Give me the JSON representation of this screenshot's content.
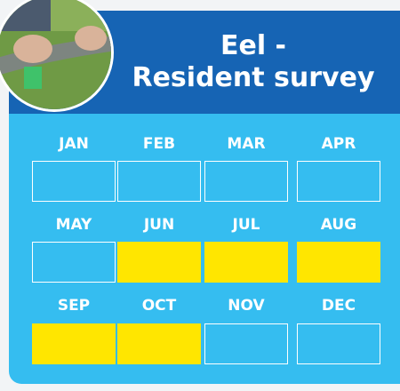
{
  "card": {
    "title_lines": [
      "Eel -",
      "Resident survey"
    ],
    "months": [
      {
        "label": "JAN",
        "active": false
      },
      {
        "label": "FEB",
        "active": false
      },
      {
        "label": "MAR",
        "active": false
      },
      {
        "label": "APR",
        "active": false
      },
      {
        "label": "MAY",
        "active": false
      },
      {
        "label": "JUN",
        "active": true
      },
      {
        "label": "JUL",
        "active": true
      },
      {
        "label": "AUG",
        "active": true
      },
      {
        "label": "SEP",
        "active": true
      },
      {
        "label": "OCT",
        "active": true
      },
      {
        "label": "NOV",
        "active": false
      },
      {
        "label": "DEC",
        "active": false
      }
    ],
    "active_color": "#ffe600"
  }
}
